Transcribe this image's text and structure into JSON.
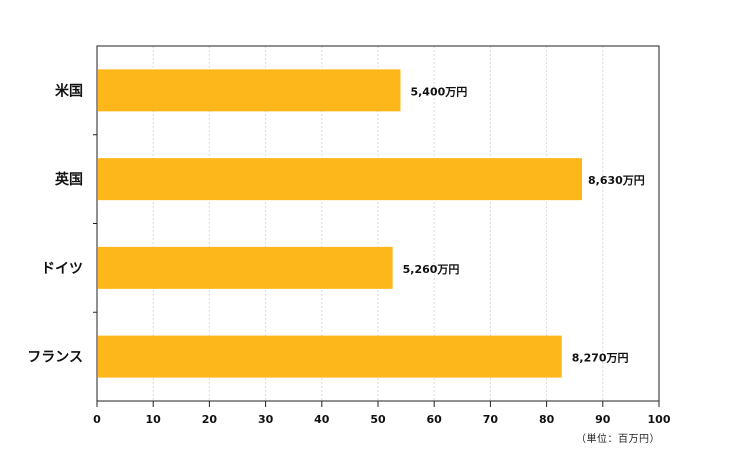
{
  "chart_data": {
    "type": "bar",
    "orientation": "horizontal",
    "categories": [
      "米国",
      "英国",
      "ドイツ",
      "フランス"
    ],
    "values": [
      54,
      86.3,
      52.6,
      82.7
    ],
    "data_labels": [
      "5,400万円",
      "8,630万円",
      "5,260万円",
      "8,270万円"
    ],
    "xlim": [
      0,
      100
    ],
    "x_ticks": [
      "0",
      "10",
      "20",
      "30",
      "40",
      "50",
      "60",
      "70",
      "80",
      "90",
      "100"
    ],
    "unit_note": "（単位：百万円）",
    "grid": true,
    "bar_color": "#FDB71A",
    "axis_color": "#222222",
    "grid_color": "#D9D9D9"
  }
}
